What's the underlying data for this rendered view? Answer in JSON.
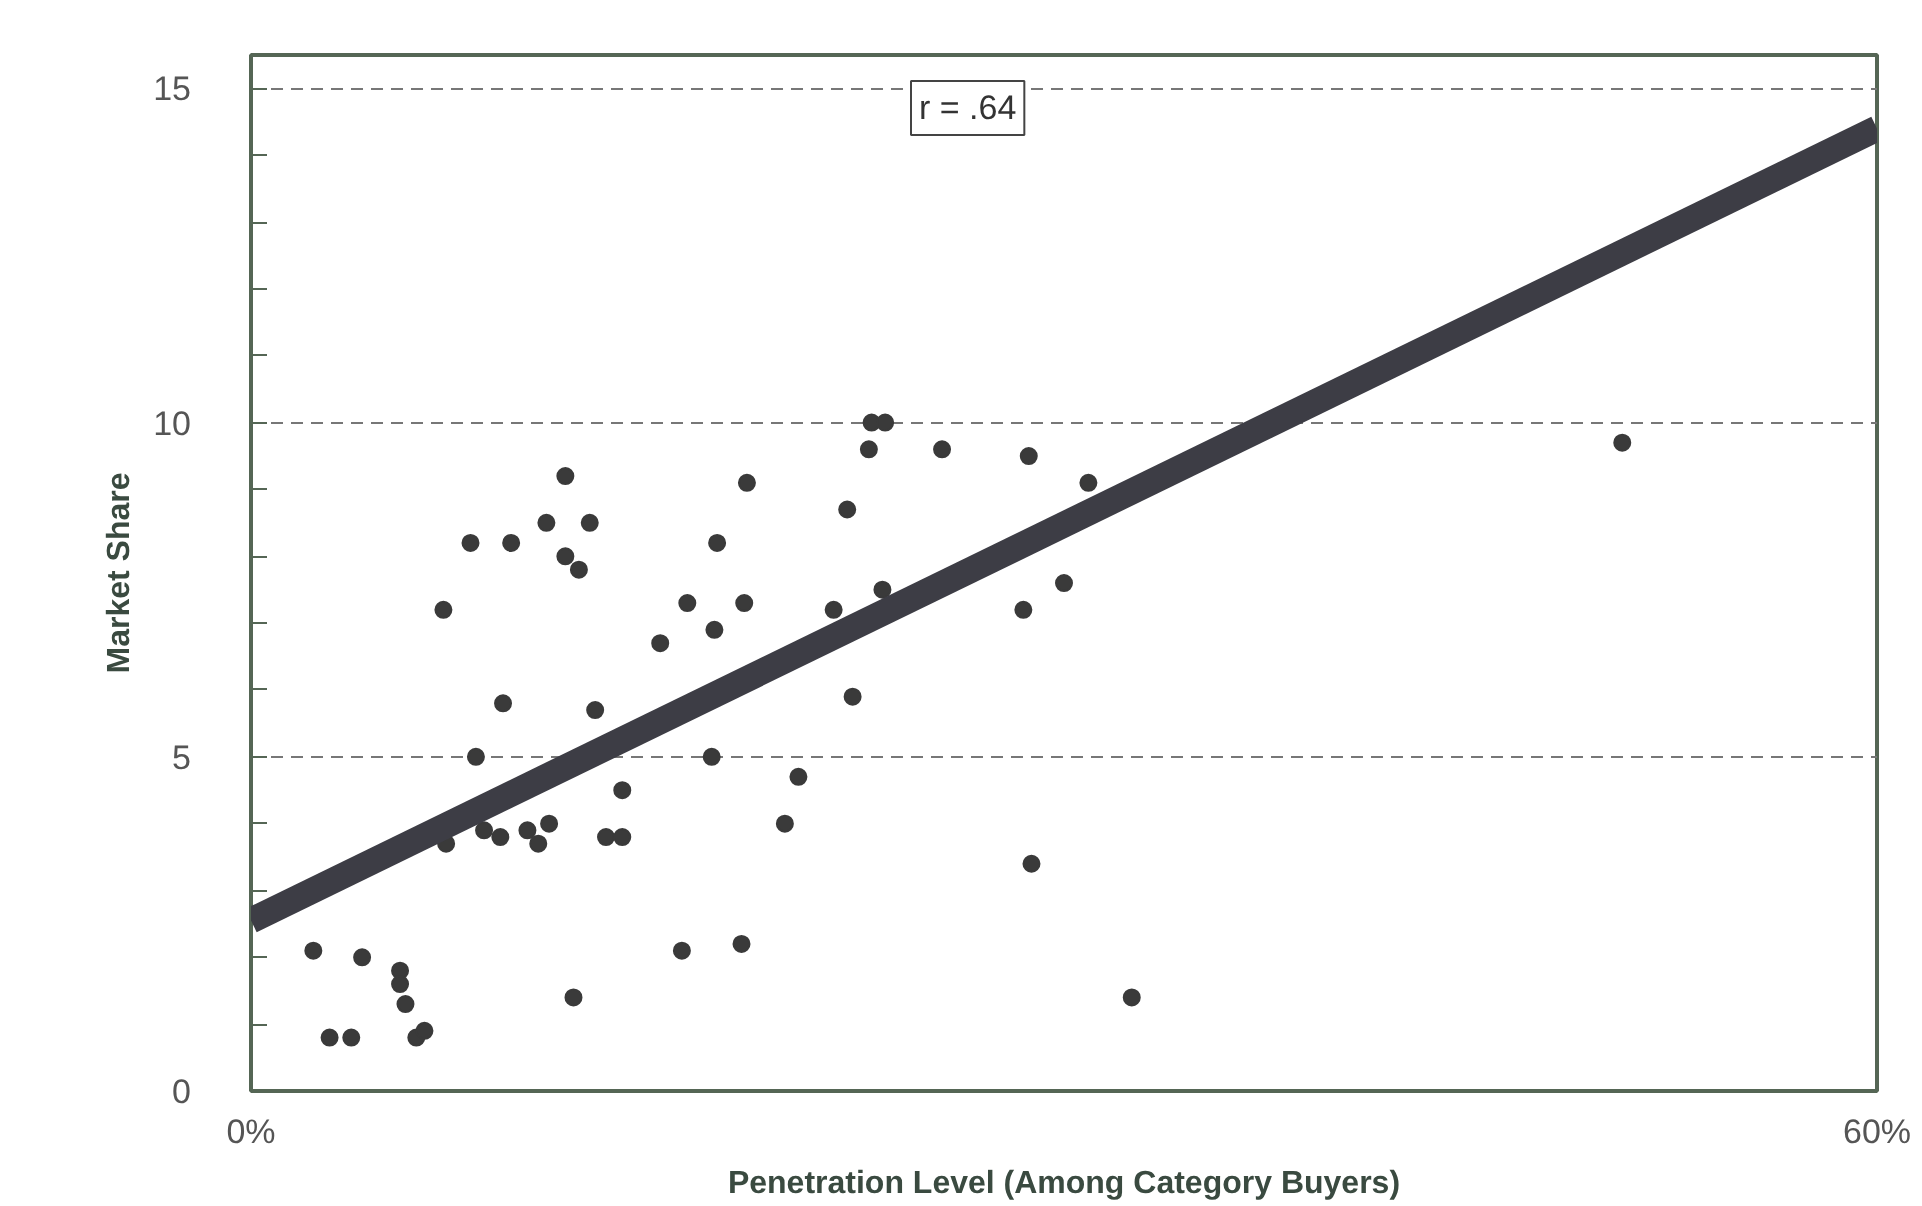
{
  "chart_data": {
    "type": "scatter",
    "xlabel": "Penetration Level (Among Category Buyers)",
    "ylabel": "Market Share",
    "annotations": [
      "r = .64"
    ],
    "xlim": [
      0,
      60
    ],
    "xticks": [
      {
        "value": 0,
        "label": "0%"
      },
      {
        "value": 60,
        "label": "60%"
      }
    ],
    "ylim": [
      0,
      15.5
    ],
    "yticks": [
      0,
      5,
      10,
      15
    ],
    "grid": "y",
    "series": [
      {
        "color": "#3a3a3a",
        "marker": "circle",
        "x": [
          2.3,
          2.9,
          3.7,
          4.1,
          5.5,
          5.5,
          5.7,
          6.1,
          6.4,
          7.1,
          7.2,
          8.1,
          8.3,
          8.6,
          9.3,
          9.2,
          9.6,
          10.2,
          10.6,
          11.0,
          10.9,
          11.6,
          11.6,
          12.1,
          12.5,
          12.7,
          11.9,
          13.1,
          13.7,
          13.7,
          15.1,
          15.9,
          16.1,
          17.1,
          17.0,
          17.2,
          18.1,
          18.2,
          18.3,
          19.7,
          20.2,
          21.5,
          22.0,
          22.2,
          22.8,
          22.9,
          23.4,
          23.3,
          25.5,
          28.7,
          28.5,
          28.8,
          30.0,
          30.9,
          32.5,
          50.6
        ],
        "values": [
          2.1,
          0.8,
          0.8,
          2.0,
          1.8,
          1.6,
          1.3,
          0.8,
          0.9,
          7.2,
          3.7,
          8.2,
          5.0,
          3.9,
          5.8,
          3.8,
          8.2,
          3.9,
          3.7,
          4.0,
          8.5,
          9.2,
          8.0,
          7.8,
          8.5,
          5.7,
          1.4,
          3.8,
          3.8,
          4.5,
          6.7,
          2.1,
          7.3,
          6.9,
          5.0,
          8.2,
          2.2,
          7.3,
          9.1,
          4.0,
          4.7,
          7.2,
          8.7,
          5.9,
          9.6,
          10.0,
          10.0,
          7.5,
          9.6,
          9.5,
          7.2,
          3.4,
          7.6,
          9.1,
          1.4,
          9.7
        ]
      },
      {
        "type": "line",
        "color": "#3d3d45",
        "x": [
          0,
          60
        ],
        "values": [
          2.55,
          14.4
        ]
      }
    ]
  }
}
